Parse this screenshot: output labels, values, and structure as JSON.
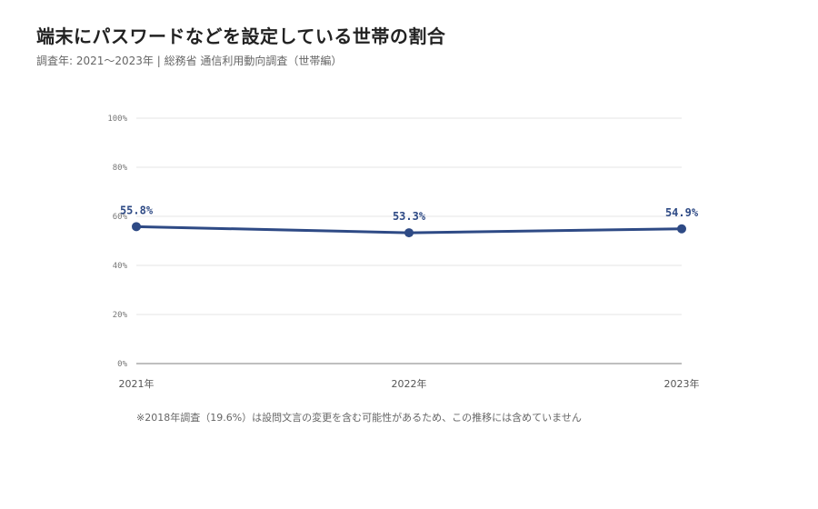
{
  "title": "端末にパスワードなどを設定している世帯の割合",
  "subtitle": "調査年: 2021〜2023年 | 総務省 通信利用動向調査（世帯編）",
  "note": "※2018年調査（19.6%）は設問文言の変更を含む可能性があるため、この推移には含めていません",
  "colors": {
    "line": "#2e4a85",
    "grid": "#e6e6e6",
    "baseline": "#999999"
  },
  "chart_data": {
    "type": "line",
    "title": "端末にパスワードなどを設定している世帯の割合",
    "xlabel": "",
    "ylabel": "",
    "categories": [
      "2021年",
      "2022年",
      "2023年"
    ],
    "series": [
      {
        "values": [
          55.8,
          53.3,
          54.9
        ],
        "labels": [
          "55.8%",
          "53.3%",
          "54.9%"
        ]
      }
    ],
    "ylim": [
      0,
      100
    ],
    "yticks": [
      0,
      20,
      40,
      60,
      80,
      100
    ],
    "ytick_labels": [
      "0%",
      "20%",
      "40%",
      "60%",
      "80%",
      "100%"
    ],
    "grid": true,
    "legend": "none"
  }
}
